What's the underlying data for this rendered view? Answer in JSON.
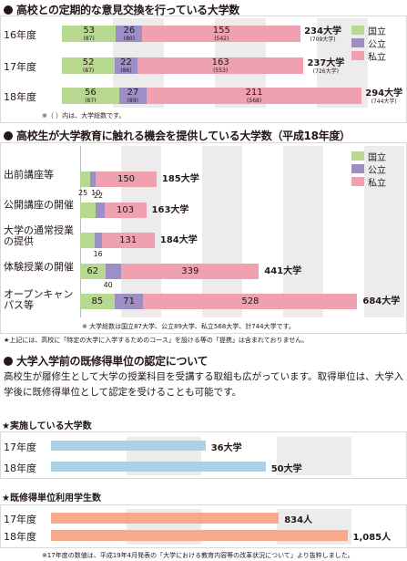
{
  "colors": {
    "national": "#b7d88f",
    "public": "#9d8fc6",
    "private": "#efa1b0",
    "stripe": "#ececec",
    "blue": "#a9d2e6",
    "orange": "#f8a98a"
  },
  "section1": {
    "title": "高校との定期的な意見交換を行っている大学数",
    "legend": [
      "国立",
      "公立",
      "私立"
    ],
    "note": "※（ ）内は、大学総数です。",
    "rows": [
      {
        "label": "16年度",
        "national": "53",
        "national_sub": "(87)",
        "public": "26",
        "public_sub": "(80)",
        "private": "155",
        "private_sub": "(542)",
        "total": "234大学",
        "total_sub": "(709大学)"
      },
      {
        "label": "17年度",
        "national": "52",
        "national_sub": "(87)",
        "public": "22",
        "public_sub": "(86)",
        "private": "163",
        "private_sub": "(553)",
        "total": "237大学",
        "total_sub": "(726大学)"
      },
      {
        "label": "18年度",
        "national": "56",
        "national_sub": "(87)",
        "public": "27",
        "public_sub": "(89)",
        "private": "211",
        "private_sub": "(568)",
        "total": "294大学",
        "total_sub": "(744大学)"
      }
    ]
  },
  "section2": {
    "title": "高校生が大学教育に触れる機会を提供している大学数（平成18年度）",
    "legend": [
      "国立",
      "公立",
      "私立"
    ],
    "rows": [
      {
        "label": "出前講座等",
        "national": "25",
        "public": "10",
        "private": "150",
        "total": "185大学"
      },
      {
        "label": "公開講座の開催",
        "national": "38",
        "public": "22",
        "private": "103",
        "total": "163大学"
      },
      {
        "label": "大学の通常授業の提供",
        "national": "37",
        "public": "16",
        "private": "131",
        "total": "184大学"
      },
      {
        "label": "体験授業の開催",
        "national": "62",
        "public": "40",
        "private": "339",
        "total": "441大学"
      },
      {
        "label": "オープンキャンパス等",
        "national": "85",
        "public": "71",
        "private": "528",
        "total": "684大学"
      }
    ],
    "note1": "※ 大学総数は国立87大学、公立89大学、私立568大学、計744大学です。",
    "note2": "★上記には、高校に「特定の大学に入学するためのコース」を設ける等の「提携」は含まれておりません。"
  },
  "section3": {
    "title": "大学入学前の既修得単位の認定について",
    "body": "高校生が履修生として大学の授業科目を受講する取組も広がっています。取得単位は、大学入学後に既修得単位として認定を受けることも可能です。",
    "sub1": {
      "title": "★実施している大学数",
      "rows": [
        {
          "label": "17年度",
          "value": 36,
          "text": "36大学"
        },
        {
          "label": "18年度",
          "value": 50,
          "text": "50大学"
        }
      ]
    },
    "sub2": {
      "title": "★既修得単位利用学生数",
      "rows": [
        {
          "label": "17年度",
          "value": 834,
          "text": "834人"
        },
        {
          "label": "18年度",
          "value": 1085,
          "text": "1,085人"
        }
      ]
    },
    "note": "※17年度の数値は、平成19年4月発表の「大学における教育内容等の改革状況について」より抜粋しました。"
  },
  "chart_data": [
    {
      "type": "bar",
      "title": "高校との定期的な意見交換を行っている大学数",
      "categories": [
        "16年度",
        "17年度",
        "18年度"
      ],
      "series": [
        {
          "name": "国立",
          "values": [
            53,
            52,
            56
          ]
        },
        {
          "name": "公立",
          "values": [
            26,
            22,
            27
          ]
        },
        {
          "name": "私立",
          "values": [
            155,
            163,
            211
          ]
        }
      ],
      "totals": [
        234,
        237,
        294
      ],
      "universe_totals": [
        709,
        726,
        744
      ],
      "stacked": true,
      "orientation": "horizontal",
      "xlim": [
        0,
        300
      ],
      "grid": true,
      "legend": "top-right"
    },
    {
      "type": "bar",
      "title": "高校生が大学教育に触れる機会を提供している大学数（平成18年度）",
      "categories": [
        "出前講座等",
        "公開講座の開催",
        "大学の通常授業の提供",
        "体験授業の開催",
        "オープンキャンパス等"
      ],
      "series": [
        {
          "name": "国立",
          "values": [
            25,
            38,
            37,
            62,
            85
          ]
        },
        {
          "name": "公立",
          "values": [
            10,
            22,
            16,
            40,
            71
          ]
        },
        {
          "name": "私立",
          "values": [
            150,
            103,
            131,
            339,
            528
          ]
        }
      ],
      "totals": [
        185,
        163,
        184,
        441,
        684
      ],
      "stacked": true,
      "orientation": "horizontal",
      "xlim": [
        0,
        700
      ],
      "grid": true,
      "legend": "top-right"
    },
    {
      "type": "bar",
      "title": "★実施している大学数",
      "categories": [
        "17年度",
        "18年度"
      ],
      "values": [
        36,
        50
      ],
      "orientation": "horizontal",
      "xlim": [
        0,
        70
      ]
    },
    {
      "type": "bar",
      "title": "★既修得単位利用学生数",
      "categories": [
        "17年度",
        "18年度"
      ],
      "values": [
        834,
        1085
      ],
      "orientation": "horizontal",
      "xlim": [
        0,
        1100
      ]
    }
  ]
}
